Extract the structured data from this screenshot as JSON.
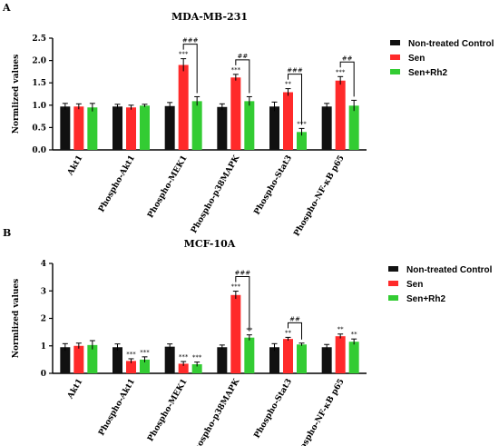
{
  "colors": {
    "Non-treated Control": "#111111",
    "Sen": "#ff2a2a",
    "Sen+Rh2": "#33cc33"
  },
  "chart_data": [
    {
      "panel_label": "A",
      "type": "bar",
      "title": "MDA-MB-231",
      "xlabel": "",
      "ylabel": "Normlized values",
      "ylim": [
        0,
        2.5
      ],
      "yticks": [
        "0.0",
        "0.5",
        "1.0",
        "1.5",
        "2.0",
        "2.5"
      ],
      "categories": [
        "Akt1",
        "Phospho-Akt1",
        "Phospho-MEK1",
        "Phospho-p38MAPK",
        "Phospho-Stat3",
        "Phospho-NF-κB p65"
      ],
      "legend_position": "right",
      "series": [
        {
          "name": "Non-treated Control",
          "values": [
            0.97,
            0.97,
            0.98,
            0.96,
            0.97,
            0.97
          ],
          "errors": [
            0.07,
            0.05,
            0.08,
            0.07,
            0.1,
            0.07
          ]
        },
        {
          "name": "Sen",
          "values": [
            0.97,
            0.95,
            1.9,
            1.62,
            1.29,
            1.55
          ],
          "errors": [
            0.06,
            0.05,
            0.14,
            0.07,
            0.08,
            0.09
          ]
        },
        {
          "name": "Sen+Rh2",
          "values": [
            0.95,
            0.99,
            1.09,
            1.09,
            0.4,
            0.99
          ],
          "errors": [
            0.09,
            0.03,
            0.1,
            0.1,
            0.08,
            0.12
          ]
        }
      ],
      "annotations": [
        {
          "category": 2,
          "series": 1,
          "text": "***"
        },
        {
          "category": 3,
          "series": 1,
          "text": "***"
        },
        {
          "category": 4,
          "series": 1,
          "text": "**"
        },
        {
          "category": 4,
          "series": 2,
          "text": "***"
        },
        {
          "category": 5,
          "series": 1,
          "text": "***"
        }
      ],
      "brackets": [
        {
          "category": 2,
          "text": "###"
        },
        {
          "category": 3,
          "text": "##"
        },
        {
          "category": 4,
          "text": "###"
        },
        {
          "category": 5,
          "text": "##"
        }
      ]
    },
    {
      "panel_label": "B",
      "type": "bar",
      "title": "MCF-10A",
      "xlabel": "",
      "ylabel": "Normlized values",
      "ylim": [
        0,
        4
      ],
      "yticks": [
        "0",
        "1",
        "2",
        "3",
        "4"
      ],
      "categories": [
        "Akt1",
        "Phospho-Akt1",
        "Phospho-MEK1",
        "Phospho-p38MAPK",
        "Phospho-Stat3",
        "Phospho-NF-κB p65"
      ],
      "legend_position": "right",
      "series": [
        {
          "name": "Non-treated Control",
          "values": [
            0.95,
            0.95,
            0.97,
            0.95,
            0.95,
            0.95
          ],
          "errors": [
            0.13,
            0.12,
            0.1,
            0.08,
            0.13,
            0.1
          ]
        },
        {
          "name": "Sen",
          "values": [
            1.0,
            0.45,
            0.35,
            2.85,
            1.25,
            1.35
          ],
          "errors": [
            0.1,
            0.08,
            0.08,
            0.14,
            0.06,
            0.08
          ]
        },
        {
          "name": "Sen+Rh2",
          "values": [
            1.03,
            0.5,
            0.33,
            1.3,
            1.05,
            1.15
          ],
          "errors": [
            0.16,
            0.1,
            0.08,
            0.1,
            0.05,
            0.1
          ]
        }
      ],
      "annotations": [
        {
          "category": 1,
          "series": 1,
          "text": "***"
        },
        {
          "category": 1,
          "series": 2,
          "text": "***"
        },
        {
          "category": 2,
          "series": 1,
          "text": "***"
        },
        {
          "category": 2,
          "series": 2,
          "text": "***"
        },
        {
          "category": 3,
          "series": 1,
          "text": "***"
        },
        {
          "category": 3,
          "series": 2,
          "text": "**"
        },
        {
          "category": 4,
          "series": 1,
          "text": "**"
        },
        {
          "category": 5,
          "series": 1,
          "text": "**"
        },
        {
          "category": 5,
          "series": 2,
          "text": "**"
        }
      ],
      "brackets": [
        {
          "category": 3,
          "text": "###"
        },
        {
          "category": 4,
          "text": "##"
        }
      ]
    }
  ]
}
